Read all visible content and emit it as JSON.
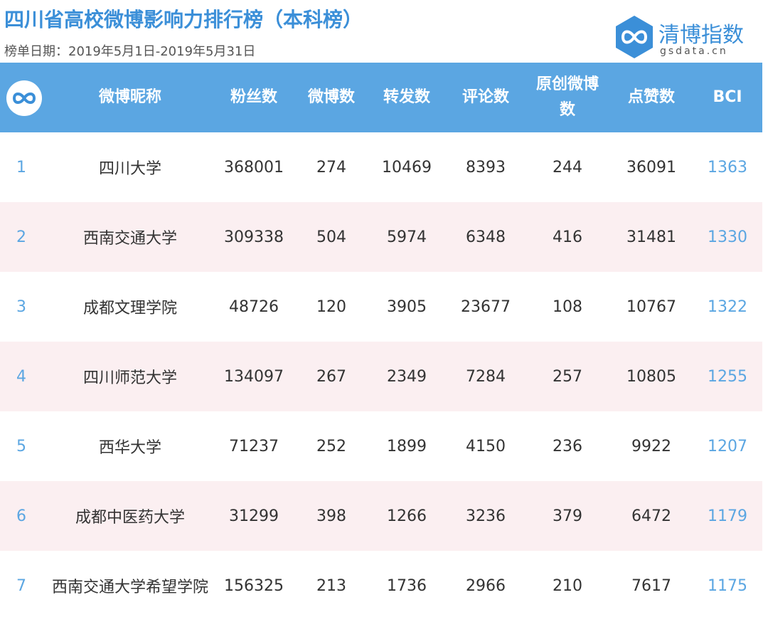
{
  "header": {
    "title": "四川省高校微博影响力排行榜（本科榜）",
    "subtitle": "榜单日期：2019年5月1日-2019年5月31日",
    "logo": "清博指数",
    "logo_url": "gsdata.cn"
  },
  "table": {
    "columns": [
      "微博昵称",
      "粉丝数",
      "微博数",
      "转发数",
      "评论数",
      "原创微博数",
      "点赞数",
      "BCI"
    ],
    "rows": [
      [
        1,
        "四川大学",
        368001,
        274,
        10469,
        8393,
        244,
        36091,
        1363
      ],
      [
        2,
        "西南交通大学",
        309338,
        504,
        5974,
        6348,
        416,
        31481,
        1330
      ],
      [
        3,
        "成都文理学院",
        48726,
        120,
        3905,
        23677,
        108,
        10767,
        1322
      ],
      [
        4,
        "四川师范大学",
        134097,
        267,
        2349,
        7284,
        257,
        10805,
        1255
      ],
      [
        5,
        "西华大学",
        71237,
        252,
        1899,
        4150,
        236,
        9922,
        1207
      ],
      [
        6,
        "成都中医药大学",
        31299,
        398,
        1266,
        3236,
        379,
        6472,
        1179
      ],
      [
        7,
        "西南交通大学希望学院",
        156325,
        213,
        1736,
        2966,
        210,
        7617,
        1175
      ]
    ]
  }
}
